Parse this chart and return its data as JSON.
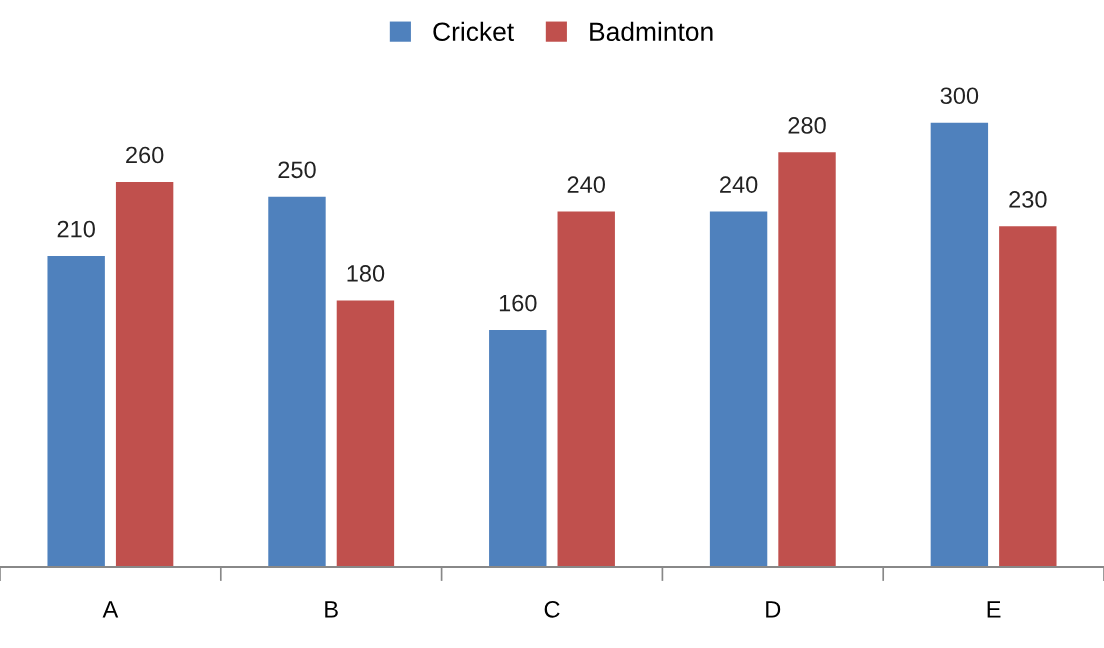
{
  "chart_data": {
    "type": "bar",
    "categories": [
      "A",
      "B",
      "C",
      "D",
      "E"
    ],
    "series": [
      {
        "name": "Cricket",
        "color": "#4f81bd",
        "values": [
          210,
          250,
          160,
          240,
          300
        ]
      },
      {
        "name": "Badminton",
        "color": "#c0504d",
        "values": [
          260,
          180,
          240,
          280,
          230
        ]
      }
    ],
    "data_labels": true,
    "legend": "top",
    "grid": false
  }
}
